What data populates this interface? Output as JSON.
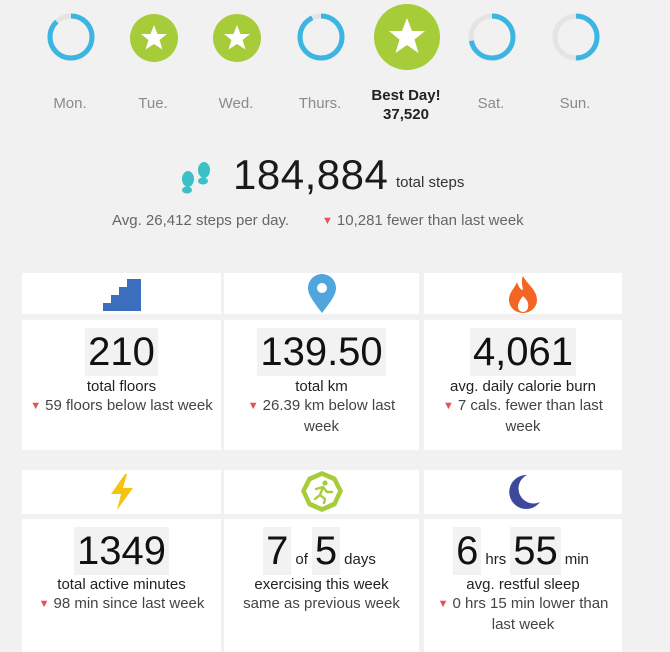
{
  "week": {
    "days": [
      {
        "label": "Mon.",
        "type": "ring",
        "fraction": 0.88
      },
      {
        "label": "Tue.",
        "type": "star"
      },
      {
        "label": "Wed.",
        "type": "star"
      },
      {
        "label": "Thurs.",
        "type": "ring",
        "fraction": 0.93
      },
      {
        "label": "Best Day!",
        "type": "best",
        "value": "37,520"
      },
      {
        "label": "Sat.",
        "type": "ring",
        "fraction": 0.72
      },
      {
        "label": "Sun.",
        "type": "ring",
        "fraction": 0.5
      }
    ]
  },
  "steps": {
    "total": "184,884",
    "unit": "total steps",
    "average": "Avg. 26,412 steps per day.",
    "delta": "10,281 fewer than last week"
  },
  "stats": [
    {
      "value": "210",
      "label": "total floors",
      "change": "59 floors below last week",
      "icon": "stairs-icon"
    },
    {
      "value": "139.50",
      "label": "total km",
      "change": "26.39 km below last week",
      "icon": "location-pin-icon"
    },
    {
      "value": "4,061",
      "label": "avg. daily calorie burn",
      "change": "7 cals. fewer than last week",
      "icon": "flame-icon"
    },
    {
      "value": "1349",
      "label": "total active minutes",
      "change": "98 min since last week",
      "icon": "lightning-icon"
    },
    {
      "value_a": "7",
      "of": "of",
      "value_b": "5",
      "days": "days",
      "label": "exercising this week",
      "change": "same as previous week",
      "icon": "exercise-runner-icon"
    },
    {
      "value_a": "6",
      "hrs": "hrs",
      "value_b": "55",
      "min": "min",
      "label": "avg. restful sleep",
      "change": "0 hrs 15 min lower than last week",
      "icon": "moon-icon"
    }
  ],
  "colors": {
    "ring": "#3bb5e2",
    "ring_track": "#e4e4e4",
    "star_green": "#a6cc3a",
    "down_red": "#e55353",
    "stairs": "#3b6fbe",
    "pin": "#4ea6dc",
    "flame": "#f26522",
    "bolt": "#f6c312",
    "moon": "#3d4a9a"
  }
}
